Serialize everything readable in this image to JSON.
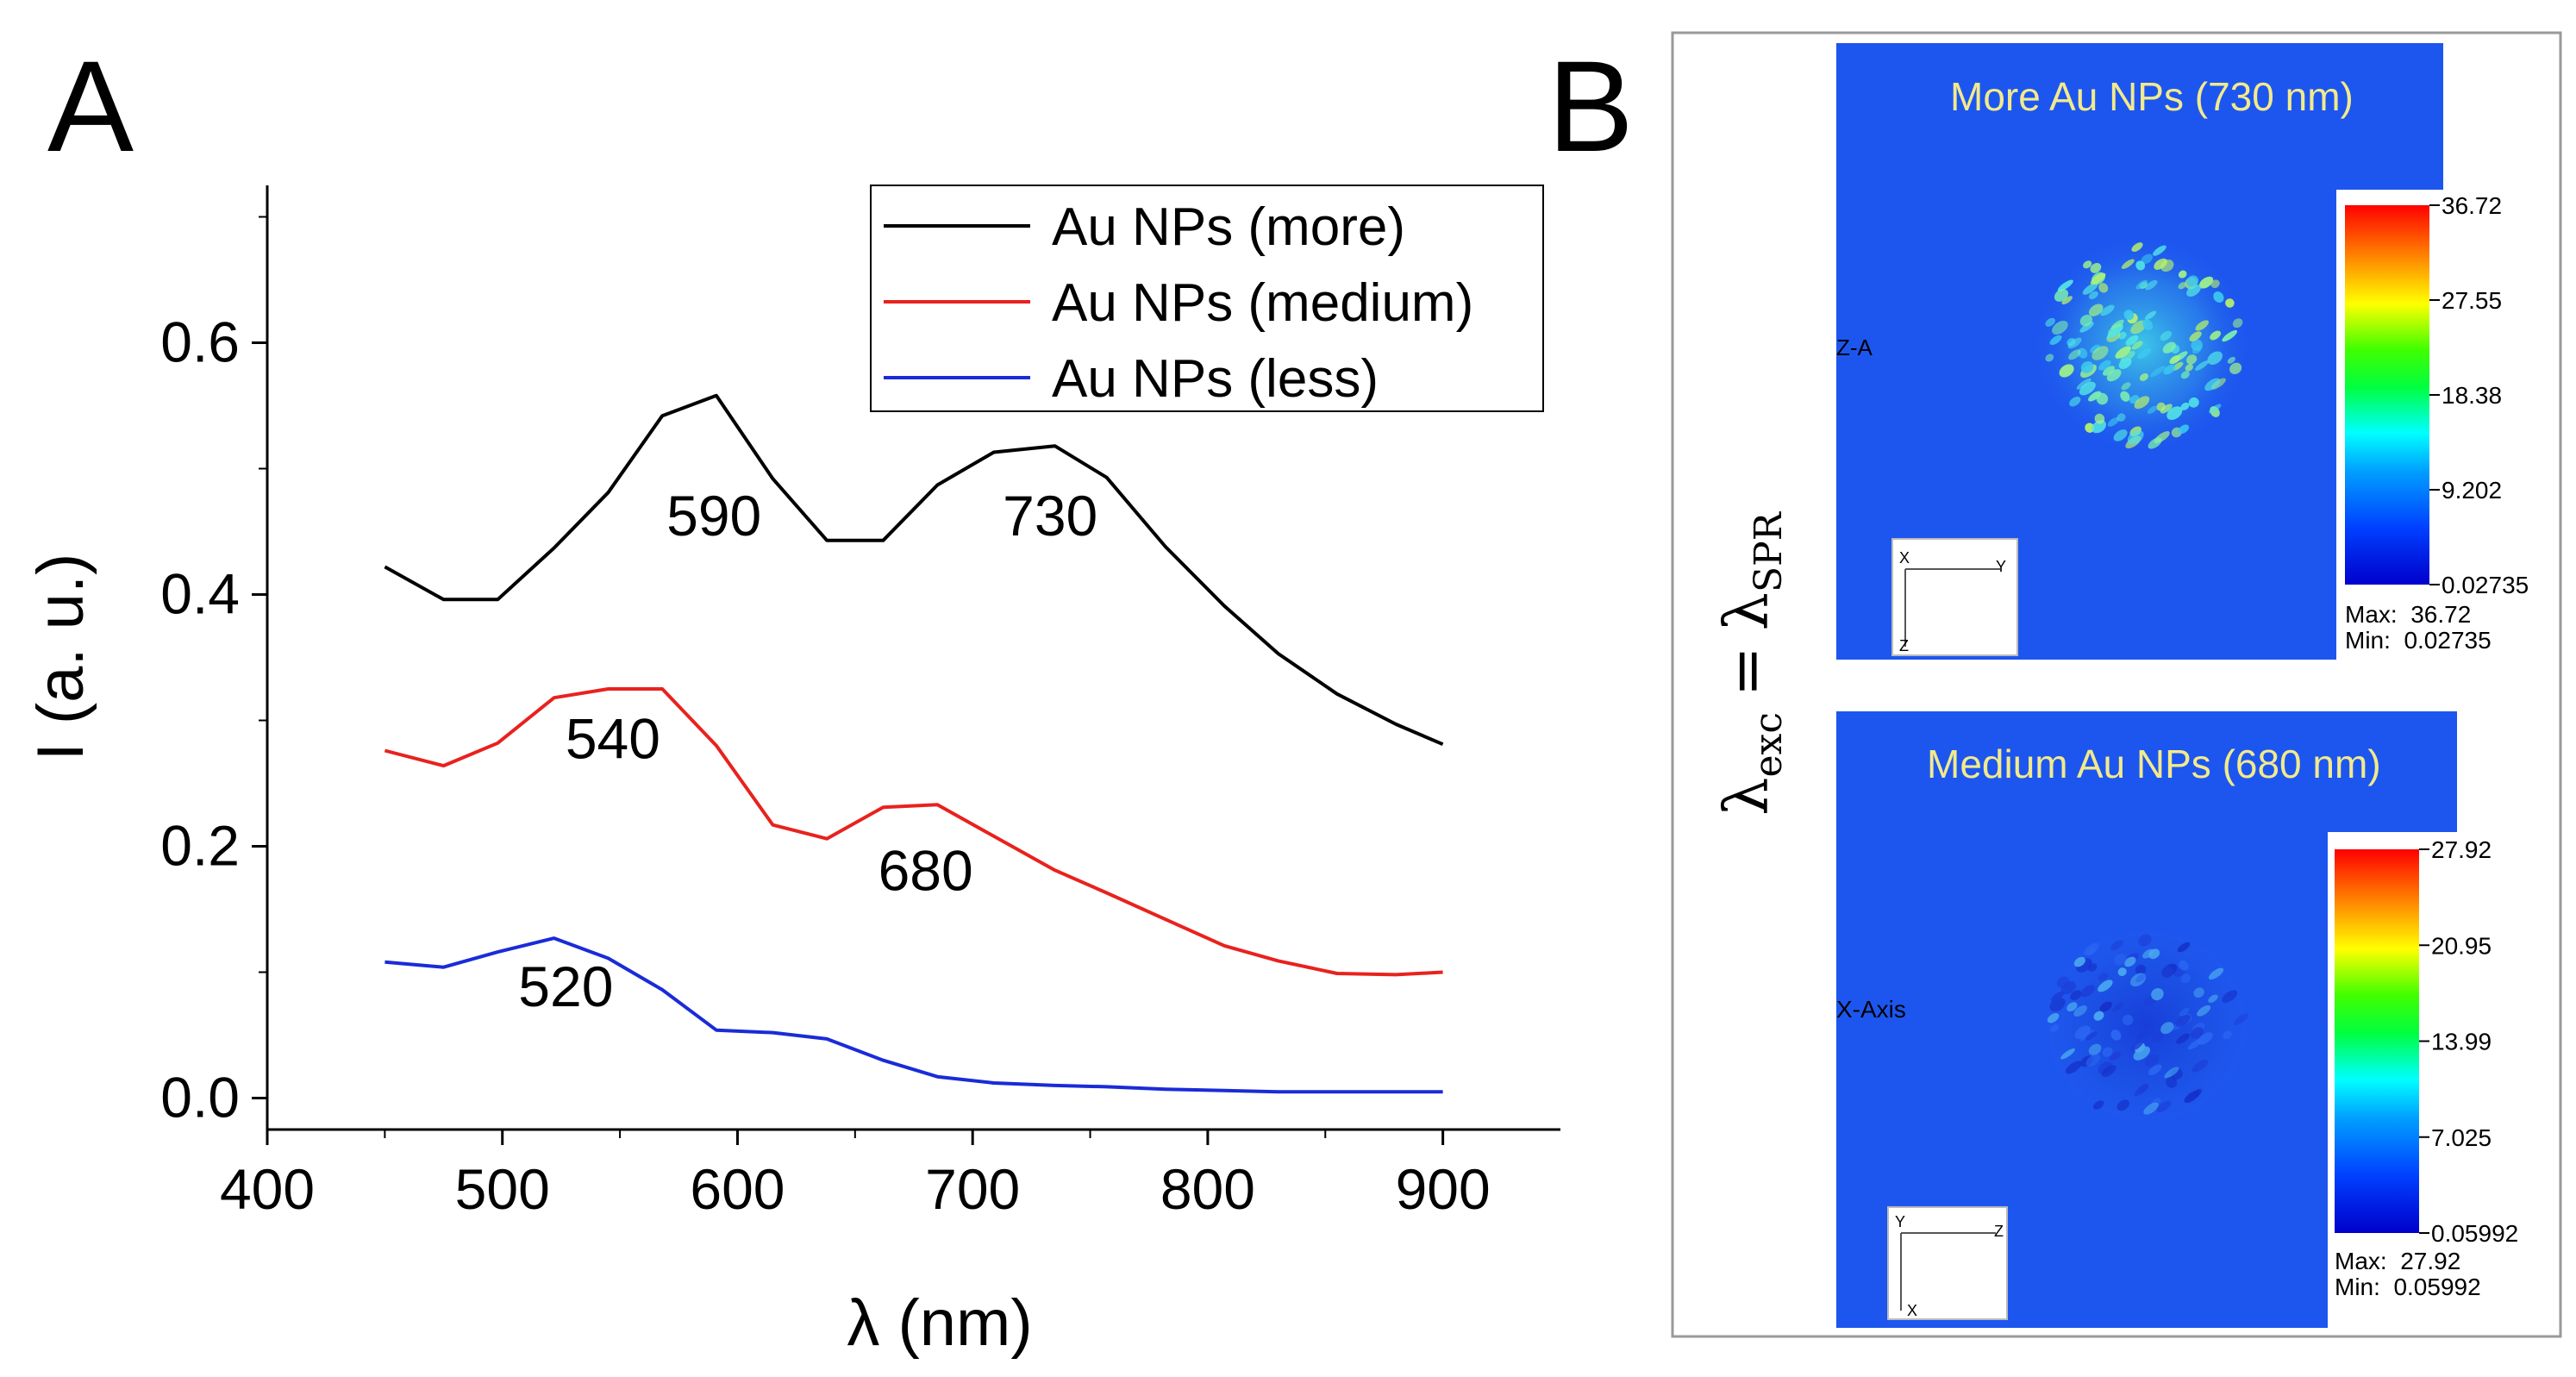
{
  "panel_a": {
    "letter": "A",
    "chart_data": {
      "type": "line",
      "xlabel": "λ (nm)",
      "ylabel": "I (a. u.)",
      "xlim": [
        400,
        950
      ],
      "ylim": [
        -0.025,
        0.725
      ],
      "xticks": [
        400,
        500,
        600,
        700,
        800,
        900
      ],
      "xtick_labels": [
        "400",
        "500",
        "600",
        "700",
        "800",
        "900"
      ],
      "yticks": [
        0.0,
        0.2,
        0.4,
        0.6
      ],
      "ytick_labels": [
        "0.0",
        "0.2",
        "0.4",
        "0.6"
      ],
      "legend_position": "top-right",
      "series": [
        {
          "name": "Au NPs (more)",
          "color": "#000000",
          "x": [
            450,
            475,
            498,
            522,
            545,
            568,
            591,
            615,
            638,
            662,
            685,
            709,
            735,
            757,
            782,
            807,
            830,
            855,
            880,
            900
          ],
          "y": [
            0.422,
            0.396,
            0.396,
            0.437,
            0.481,
            0.542,
            0.558,
            0.492,
            0.443,
            0.443,
            0.487,
            0.513,
            0.518,
            0.493,
            0.438,
            0.391,
            0.353,
            0.321,
            0.297,
            0.281
          ]
        },
        {
          "name": "Au NPs (medium)",
          "color": "#e8221e",
          "x": [
            450,
            475,
            498,
            522,
            545,
            568,
            591,
            615,
            638,
            662,
            685,
            709,
            735,
            757,
            782,
            807,
            830,
            855,
            880,
            900
          ],
          "y": [
            0.276,
            0.264,
            0.282,
            0.318,
            0.325,
            0.325,
            0.28,
            0.217,
            0.206,
            0.231,
            0.233,
            0.208,
            0.181,
            0.163,
            0.142,
            0.121,
            0.109,
            0.099,
            0.098,
            0.1
          ]
        },
        {
          "name": "Au NPs (less)",
          "color": "#1a2bd8",
          "x": [
            450,
            475,
            498,
            522,
            545,
            568,
            591,
            615,
            638,
            662,
            685,
            709,
            735,
            757,
            782,
            807,
            830,
            855,
            880,
            900
          ],
          "y": [
            0.108,
            0.104,
            0.116,
            0.127,
            0.111,
            0.086,
            0.054,
            0.052,
            0.047,
            0.03,
            0.017,
            0.012,
            0.01,
            0.009,
            0.007,
            0.006,
            0.005,
            0.005,
            0.005,
            0.005
          ]
        }
      ],
      "annotations": [
        {
          "text": "590",
          "x": 590,
          "y": 0.462
        },
        {
          "text": "730",
          "x": 733,
          "y": 0.462
        },
        {
          "text": "540",
          "x": 547,
          "y": 0.285
        },
        {
          "text": "680",
          "x": 680,
          "y": 0.18
        },
        {
          "text": "520",
          "x": 527,
          "y": 0.088
        }
      ]
    }
  },
  "panel_b": {
    "letter": "B",
    "side_label": {
      "lambda": "λ",
      "exc": "exc",
      "equals": "=",
      "spr": "SPR"
    },
    "maps": [
      {
        "title": "More Au NPs (730 nm)",
        "axis_label": "Z-A",
        "triad_h": "Y",
        "triad_v": "Z",
        "triad_corner": "X",
        "scale_ticks": [
          "36.72",
          "27.55",
          "18.38",
          "9.202",
          "0.02735"
        ],
        "max_text": "Max:  36.72",
        "min_text": "Min:  0.02735",
        "title_color": "#f2ea8c"
      },
      {
        "title": "Medium Au NPs (680 nm)",
        "axis_label": "X-Axis",
        "triad_h": "Z",
        "triad_v": "X",
        "triad_corner": "Y",
        "scale_ticks": [
          "27.92",
          "20.95",
          "13.99",
          "7.025",
          "0.05992"
        ],
        "max_text": "Max:  27.92",
        "min_text": "Min:  0.05992",
        "title_color": "#f2ea8c"
      }
    ]
  }
}
